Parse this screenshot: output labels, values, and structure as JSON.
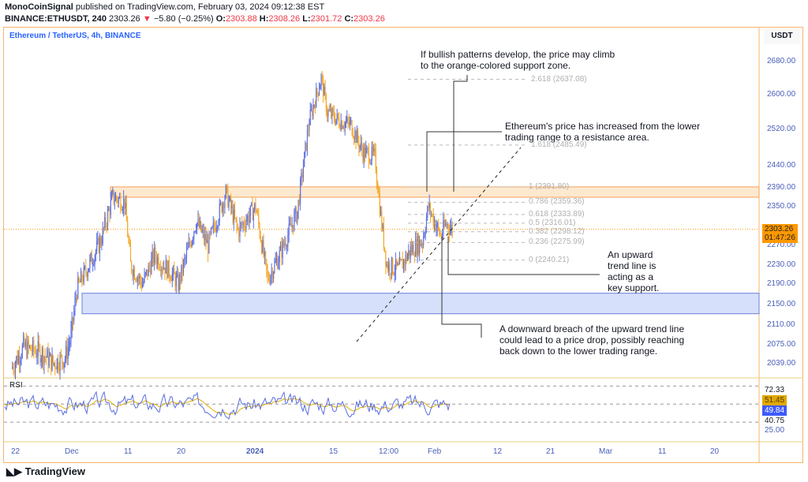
{
  "header": {
    "author": "MonoCoinSignal",
    "published": "published on TradingView.com, February 03, 2024 09:12:38 EST",
    "symbol": "BINANCE:ETHUSDT, 240",
    "price": "2303.26",
    "change": "−5.80 (−0.25%)",
    "o_label": "O:",
    "o": "2303.88",
    "h_label": "H:",
    "h": "2308.26",
    "l_label": "L:",
    "l": "2301.72",
    "c_label": "C:",
    "c": "2303.26"
  },
  "chart_title": "Ethereum / TetherUS, 4h, BINANCE",
  "currency": "USDT",
  "current_price_tag": {
    "price": "2303.26",
    "countdown": "01:47:26"
  },
  "rsi": {
    "label": "RSI",
    "values_labels": [
      "72.33",
      "51.45",
      "49.84",
      "40.75",
      "25.00"
    ]
  },
  "annotations": [
    {
      "text": "If bullish patterns develop, the price may climb to the orange-colored support zone."
    },
    {
      "text": "Ethereum's price has increased from the lower trading range to a resistance area."
    },
    {
      "text": "An upward trend line is acting as a key support."
    },
    {
      "text": "A downward breach of the upward trend line could lead to a price drop, possibly reaching back down to the lower trading range."
    }
  ],
  "fib_levels": [
    {
      "label": "2.618 (2637.08)",
      "value": 2637.08
    },
    {
      "label": "1.618 (2485.49)",
      "value": 2485.49
    },
    {
      "label": "1 (2391.80)",
      "value": 2391.8
    },
    {
      "label": "0.786 (2359.36)",
      "value": 2359.36
    },
    {
      "label": "0.618 (2333.89)",
      "value": 2333.89
    },
    {
      "label": "0.5 (2316.01)",
      "value": 2316.01
    },
    {
      "label": "0.382 (2298.12)",
      "value": 2298.12
    },
    {
      "label": "0.236 (2275.99)",
      "value": 2275.99
    },
    {
      "label": "0 (2240.21)",
      "value": 2240.21
    }
  ],
  "zones": {
    "resistance": [
      2370,
      2392
    ],
    "support": [
      2132,
      2172
    ]
  },
  "colors": {
    "up": "#5b6ee1",
    "down": "#f5a623",
    "resistance_zone": "#fde9cf",
    "support_zone": "#d6e0fb",
    "rsi_line": "#5b6ee1",
    "rsi_ma": "#e0b000"
  },
  "footer": {
    "brand": "TradingView"
  },
  "chart_data": {
    "type": "candlestick",
    "y_ticks": [
      "2680.00",
      "2600.00",
      "2520.00",
      "2440.00",
      "2390.00",
      "2350.00",
      "2270.00",
      "2230.00",
      "2190.00",
      "2150.00",
      "2110.00",
      "2075.00",
      "2039.00"
    ],
    "x_ticks": [
      "22",
      "Dec",
      "11",
      "20",
      "2024",
      "15",
      "12:00",
      "Feb",
      "12",
      "21",
      "Mar",
      "11",
      "20"
    ],
    "close_path": [
      {
        "date": "2023-11-21",
        "close": 2030
      },
      {
        "date": "2023-11-23",
        "close": 2070
      },
      {
        "date": "2023-11-26",
        "close": 2060
      },
      {
        "date": "2023-11-28",
        "close": 2040
      },
      {
        "date": "2023-11-30",
        "close": 2050
      },
      {
        "date": "2023-12-01",
        "close": 2090
      },
      {
        "date": "2023-12-02",
        "close": 2180
      },
      {
        "date": "2023-12-04",
        "close": 2230
      },
      {
        "date": "2023-12-06",
        "close": 2280
      },
      {
        "date": "2023-12-08",
        "close": 2370
      },
      {
        "date": "2023-12-10",
        "close": 2360
      },
      {
        "date": "2023-12-11",
        "close": 2230
      },
      {
        "date": "2023-12-13",
        "close": 2190
      },
      {
        "date": "2023-12-15",
        "close": 2250
      },
      {
        "date": "2023-12-18",
        "close": 2210
      },
      {
        "date": "2023-12-19",
        "close": 2190
      },
      {
        "date": "2023-12-22",
        "close": 2320
      },
      {
        "date": "2023-12-24",
        "close": 2270
      },
      {
        "date": "2023-12-27",
        "close": 2380
      },
      {
        "date": "2023-12-29",
        "close": 2300
      },
      {
        "date": "2024-01-01",
        "close": 2350
      },
      {
        "date": "2024-01-03",
        "close": 2200
      },
      {
        "date": "2024-01-05",
        "close": 2250
      },
      {
        "date": "2024-01-08",
        "close": 2340
      },
      {
        "date": "2024-01-10",
        "close": 2540
      },
      {
        "date": "2024-01-12",
        "close": 2640
      },
      {
        "date": "2024-01-13",
        "close": 2560
      },
      {
        "date": "2024-01-15",
        "close": 2540
      },
      {
        "date": "2024-01-17",
        "close": 2530
      },
      {
        "date": "2024-01-19",
        "close": 2470
      },
      {
        "date": "2024-01-21",
        "close": 2460
      },
      {
        "date": "2024-01-22",
        "close": 2330
      },
      {
        "date": "2024-01-23",
        "close": 2230
      },
      {
        "date": "2024-01-25",
        "close": 2220
      },
      {
        "date": "2024-01-27",
        "close": 2260
      },
      {
        "date": "2024-01-29",
        "close": 2280
      },
      {
        "date": "2024-01-30",
        "close": 2350
      },
      {
        "date": "2024-01-31",
        "close": 2320
      },
      {
        "date": "2024-02-01",
        "close": 2290
      },
      {
        "date": "2024-02-02",
        "close": 2315
      },
      {
        "date": "2024-02-03",
        "close": 2303.26
      }
    ],
    "rsi_levels": [
      70,
      50,
      30
    ]
  }
}
